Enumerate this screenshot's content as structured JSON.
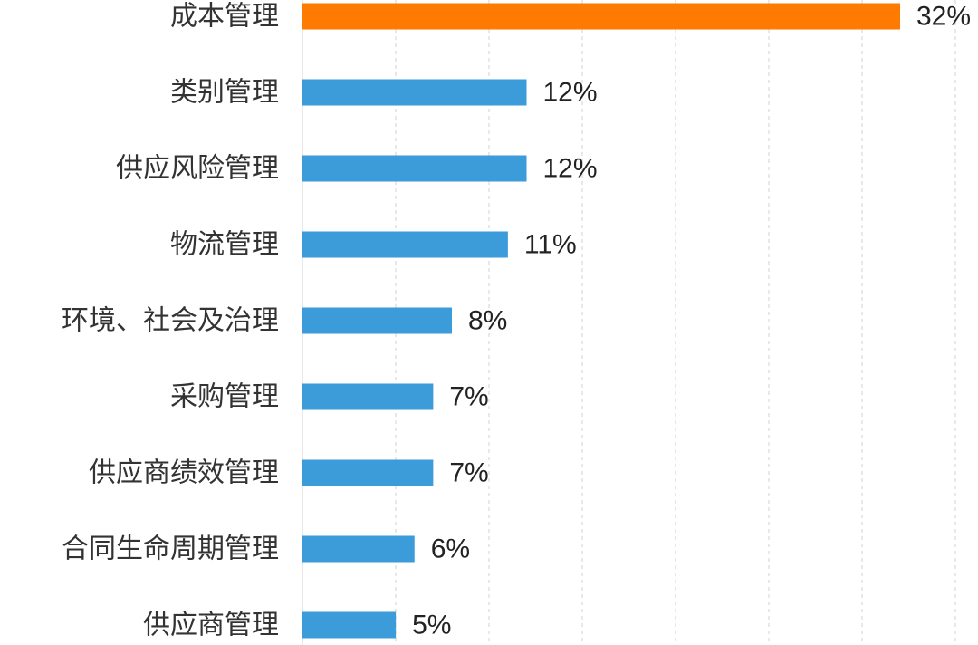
{
  "chart_data": {
    "type": "bar",
    "orientation": "horizontal",
    "categories": [
      "成本管理",
      "类别管理",
      "供应风险管理",
      "物流管理",
      "环境、社会及治理",
      "采购管理",
      "供应商绩效管理",
      "合同生命周期管理",
      "供应商管理"
    ],
    "values": [
      32,
      12,
      12,
      11,
      8,
      7,
      7,
      6,
      5
    ],
    "value_labels": [
      "32%",
      "12%",
      "12%",
      "11%",
      "8%",
      "7%",
      "7%",
      "6%",
      "5%"
    ],
    "unit": "%",
    "xlim": [
      0,
      35
    ],
    "grid": true,
    "legend": "none",
    "colors": {
      "highlight": "#FF7A00",
      "default": "#3C9BD9"
    },
    "highlight_index": 0
  }
}
